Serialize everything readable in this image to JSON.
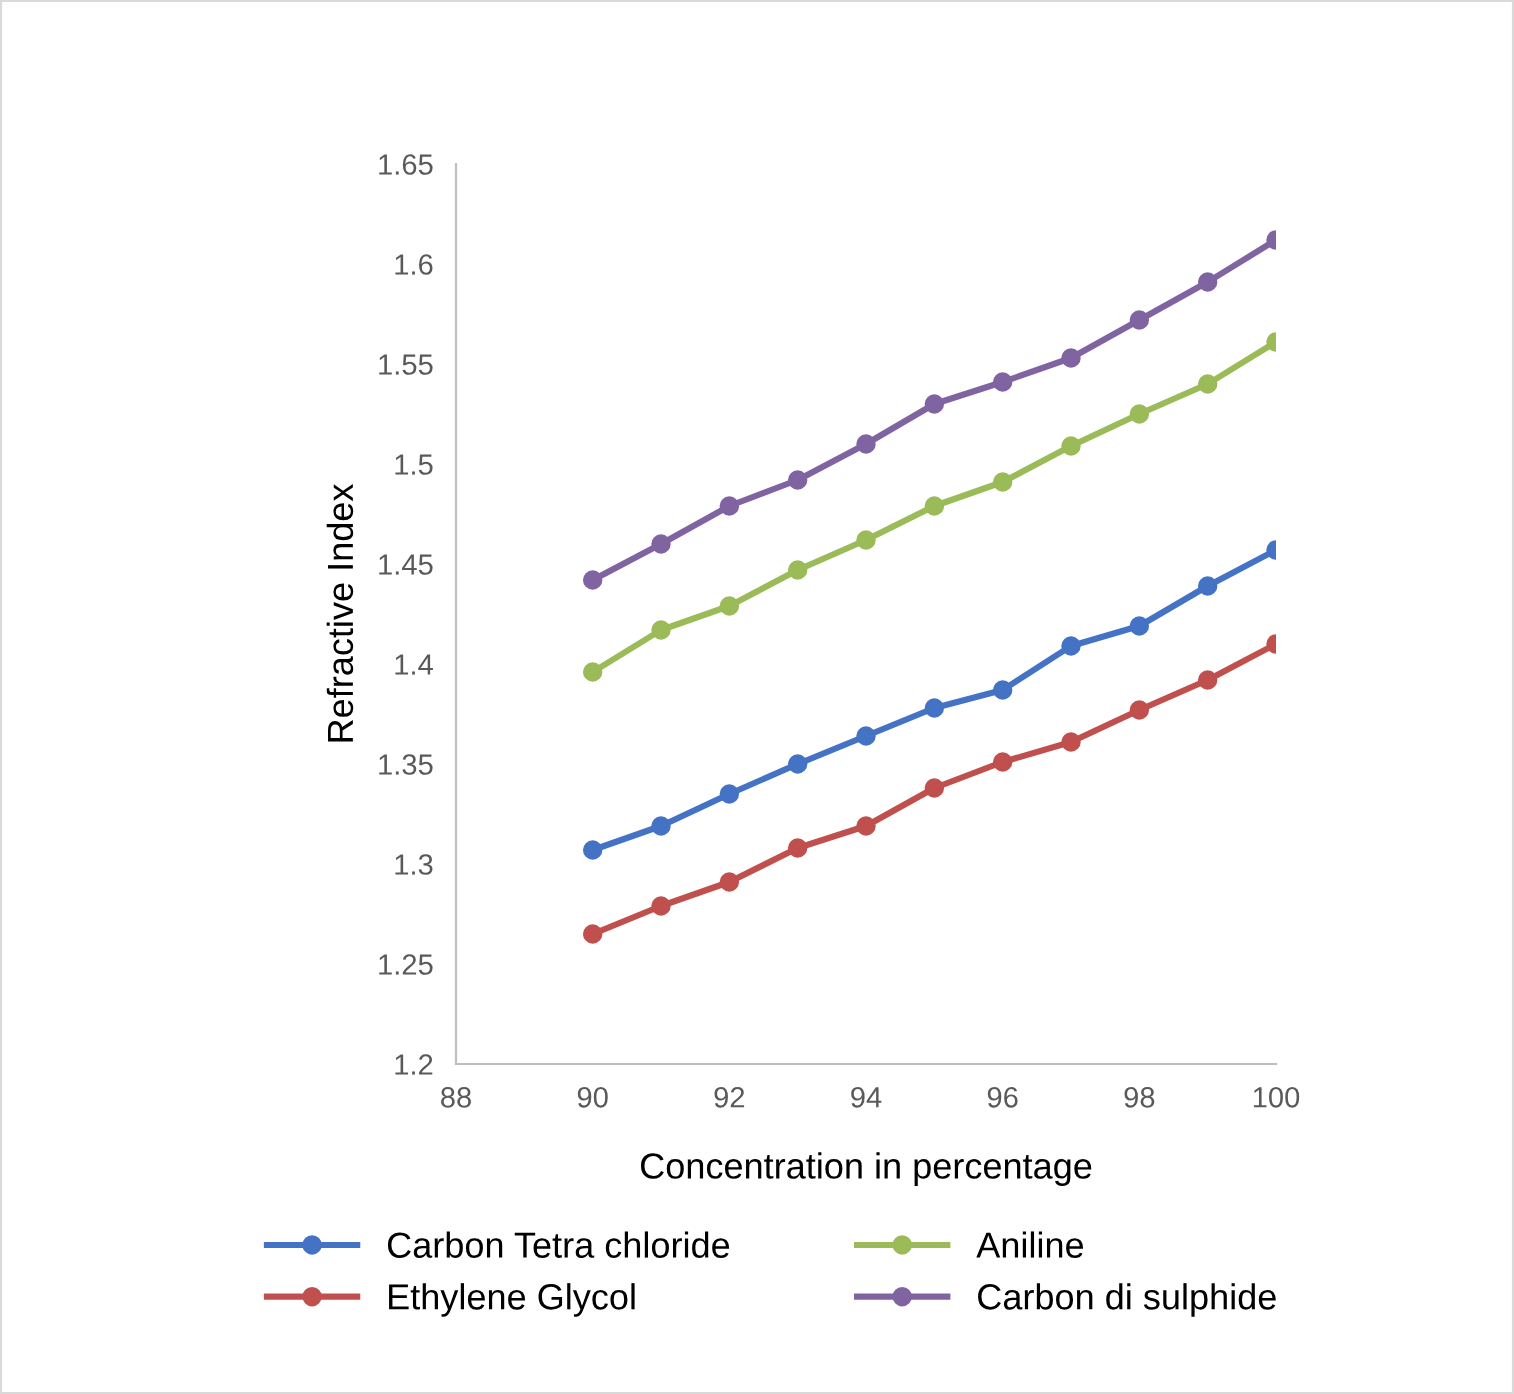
{
  "chart_data": {
    "type": "line",
    "xlabel": "Concentration in percentage",
    "ylabel": "Refractive Index",
    "x": [
      90,
      91,
      92,
      93,
      94,
      95,
      96,
      97,
      98,
      99,
      100
    ],
    "series": [
      {
        "name": "Carbon Tetra chloride",
        "color": "#4472c4",
        "values": [
          1.307,
          1.319,
          1.335,
          1.35,
          1.364,
          1.378,
          1.387,
          1.409,
          1.419,
          1.439,
          1.457
        ]
      },
      {
        "name": "Ethylene Glycol",
        "color": "#c0504d",
        "values": [
          1.265,
          1.279,
          1.291,
          1.308,
          1.319,
          1.338,
          1.351,
          1.361,
          1.377,
          1.392,
          1.41
        ]
      },
      {
        "name": "Aniline",
        "color": "#9bbb59",
        "values": [
          1.396,
          1.417,
          1.429,
          1.447,
          1.462,
          1.479,
          1.491,
          1.509,
          1.525,
          1.54,
          1.561
        ]
      },
      {
        "name": "Carbon di sulphide",
        "color": "#8064a2",
        "values": [
          1.442,
          1.46,
          1.479,
          1.492,
          1.51,
          1.53,
          1.541,
          1.553,
          1.572,
          1.591,
          1.612
        ]
      }
    ],
    "xlim": [
      88,
      100
    ],
    "xticks": [
      88,
      90,
      92,
      94,
      96,
      98,
      100
    ],
    "ylim": [
      1.2,
      1.65
    ],
    "yticks": [
      {
        "value": 1.2,
        "label": "1.2"
      },
      {
        "value": 1.25,
        "label": "1.25"
      },
      {
        "value": 1.3,
        "label": "1.3"
      },
      {
        "value": 1.35,
        "label": "1.35"
      },
      {
        "value": 1.4,
        "label": "1.4"
      },
      {
        "value": 1.45,
        "label": "1.45"
      },
      {
        "value": 1.5,
        "label": "1.5"
      },
      {
        "value": 1.55,
        "label": "1.55"
      },
      {
        "value": 1.6,
        "label": "1.6"
      },
      {
        "value": 1.65,
        "label": "1.65"
      }
    ],
    "grid": false,
    "legend": "bottom",
    "marker": "circle",
    "line_style": "solid"
  }
}
